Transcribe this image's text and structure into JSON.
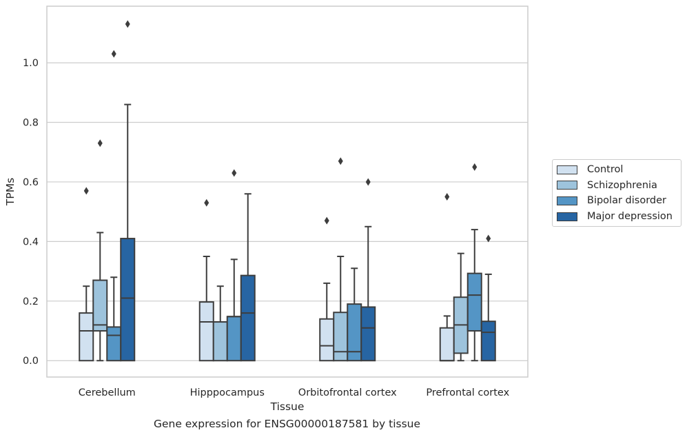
{
  "chart_data": {
    "type": "box",
    "xlabel": "Tissue",
    "ylabel": "TPMs",
    "caption": "Gene expression for ENSG00000187581 by tissue",
    "ylim": [
      -0.055,
      1.19
    ],
    "yticks": [
      0.0,
      0.2,
      0.4,
      0.6,
      0.8,
      1.0
    ],
    "ytick_labels": [
      "0.0",
      "0.2",
      "0.4",
      "0.6",
      "0.8",
      "1.0"
    ],
    "grid": "horizontal",
    "legend_position": "right",
    "categories": [
      "Cerebellum",
      "Hipppocampus",
      "Orbitofrontal cortex",
      "Prefrontal cortex"
    ],
    "series": [
      {
        "name": "Control",
        "color": "#d1e1f0",
        "boxes": [
          {
            "whisker_low": 0.0,
            "q1": 0.0,
            "median": 0.1,
            "q3": 0.16,
            "whisker_high": 0.25,
            "outliers": [
              0.57
            ]
          },
          {
            "whisker_low": 0.0,
            "q1": 0.0,
            "median": 0.13,
            "q3": 0.197,
            "whisker_high": 0.35,
            "outliers": [
              0.53
            ]
          },
          {
            "whisker_low": 0.0,
            "q1": 0.0,
            "median": 0.05,
            "q3": 0.14,
            "whisker_high": 0.26,
            "outliers": [
              0.47
            ]
          },
          {
            "whisker_low": 0.0,
            "q1": 0.0,
            "median": 0.0,
            "q3": 0.11,
            "whisker_high": 0.15,
            "outliers": [
              0.55
            ]
          }
        ]
      },
      {
        "name": "Schizophrenia",
        "color": "#9dc3dc",
        "boxes": [
          {
            "whisker_low": 0.0,
            "q1": 0.1,
            "median": 0.12,
            "q3": 0.27,
            "whisker_high": 0.43,
            "outliers": [
              0.73
            ]
          },
          {
            "whisker_low": 0.0,
            "q1": 0.0,
            "median": 0.13,
            "q3": 0.13,
            "whisker_high": 0.25,
            "outliers": []
          },
          {
            "whisker_low": 0.0,
            "q1": 0.0,
            "median": 0.03,
            "q3": 0.162,
            "whisker_high": 0.35,
            "outliers": [
              0.67
            ]
          },
          {
            "whisker_low": 0.0,
            "q1": 0.025,
            "median": 0.12,
            "q3": 0.213,
            "whisker_high": 0.36,
            "outliers": []
          }
        ]
      },
      {
        "name": "Bipolar disorder",
        "color": "#5495c5",
        "boxes": [
          {
            "whisker_low": 0.0,
            "q1": 0.0,
            "median": 0.085,
            "q3": 0.113,
            "whisker_high": 0.28,
            "outliers": [
              1.03
            ]
          },
          {
            "whisker_low": 0.0,
            "q1": 0.0,
            "median": 0.148,
            "q3": 0.148,
            "whisker_high": 0.34,
            "outliers": [
              0.63
            ]
          },
          {
            "whisker_low": 0.0,
            "q1": 0.0,
            "median": 0.03,
            "q3": 0.19,
            "whisker_high": 0.31,
            "outliers": []
          },
          {
            "whisker_low": 0.0,
            "q1": 0.1,
            "median": 0.22,
            "q3": 0.293,
            "whisker_high": 0.44,
            "outliers": [
              0.65
            ]
          }
        ]
      },
      {
        "name": "Major depression",
        "color": "#2765a3",
        "boxes": [
          {
            "whisker_low": 0.0,
            "q1": 0.0,
            "median": 0.21,
            "q3": 0.41,
            "whisker_high": 0.86,
            "outliers": [
              1.13
            ]
          },
          {
            "whisker_low": 0.0,
            "q1": 0.0,
            "median": 0.16,
            "q3": 0.286,
            "whisker_high": 0.56,
            "outliers": []
          },
          {
            "whisker_low": 0.0,
            "q1": 0.0,
            "median": 0.11,
            "q3": 0.18,
            "whisker_high": 0.45,
            "outliers": [
              0.6
            ]
          },
          {
            "whisker_low": 0.0,
            "q1": 0.0,
            "median": 0.095,
            "q3": 0.132,
            "whisker_high": 0.29,
            "outliers": [
              0.41
            ]
          }
        ]
      }
    ]
  }
}
